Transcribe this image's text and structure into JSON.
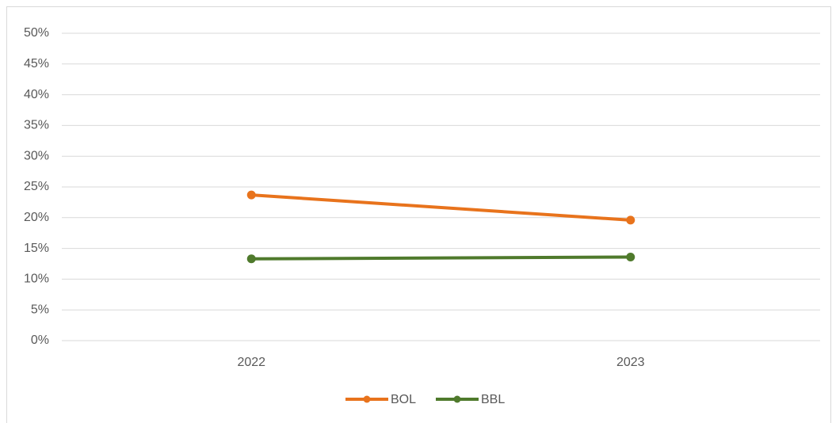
{
  "chart_data": {
    "type": "line",
    "categories": [
      "2022",
      "2023"
    ],
    "series": [
      {
        "name": "BOL",
        "color": "#e8731c",
        "values": [
          23.7,
          19.6
        ]
      },
      {
        "name": "BBL",
        "color": "#4f7a2c",
        "values": [
          13.3,
          13.6
        ]
      }
    ],
    "ylim": [
      0,
      50
    ],
    "yticks": [
      {
        "value": 0,
        "label": "0%"
      },
      {
        "value": 5,
        "label": "5%"
      },
      {
        "value": 10,
        "label": "10%"
      },
      {
        "value": 15,
        "label": "15%"
      },
      {
        "value": 20,
        "label": "20%"
      },
      {
        "value": 25,
        "label": "25%"
      },
      {
        "value": 30,
        "label": "30%"
      },
      {
        "value": 35,
        "label": "35%"
      },
      {
        "value": 40,
        "label": "40%"
      },
      {
        "value": 45,
        "label": "45%"
      },
      {
        "value": 50,
        "label": "50%"
      }
    ],
    "grid": true,
    "legend": "bottom"
  }
}
